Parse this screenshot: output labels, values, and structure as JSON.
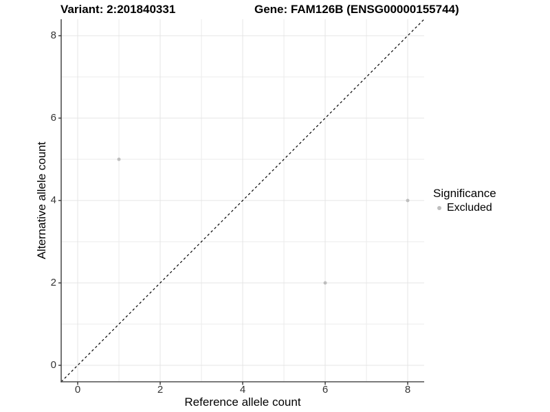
{
  "figure": {
    "background": "#ffffff"
  },
  "chart_data": {
    "type": "scatter",
    "title_left": "Variant: 2:201840331",
    "title_right": "Gene: FAM126B (ENSG00000155744)",
    "xlabel": "Reference allele count",
    "ylabel": "Alternative allele count",
    "xlim": [
      -0.4,
      8.4
    ],
    "ylim": [
      -0.4,
      8.4
    ],
    "x_ticks": [
      0,
      2,
      4,
      6,
      8
    ],
    "y_ticks": [
      0,
      2,
      4,
      6,
      8
    ],
    "x_minor_ticks": [
      1,
      3,
      5,
      7
    ],
    "y_minor_ticks": [
      1,
      3,
      5,
      7
    ],
    "grid": true,
    "series": [
      {
        "name": "Excluded",
        "color": "#bebebe",
        "points": [
          [
            1,
            5
          ],
          [
            6,
            2
          ],
          [
            8,
            4
          ]
        ]
      }
    ],
    "reference_line": {
      "description": "identity line y = x",
      "slope": 1,
      "intercept": 0,
      "style": "dashed",
      "color": "#000000"
    },
    "legend": {
      "title": "Significance",
      "position": "right",
      "entries": [
        {
          "label": "Excluded",
          "color": "#bebebe"
        }
      ]
    },
    "colors": {
      "axis": "#4f4f4f",
      "tick": "#333333",
      "tick_label": "#333333",
      "grid_major": "#e4e4e4",
      "grid_minor": "#ebebeb",
      "title": "#000000"
    }
  }
}
